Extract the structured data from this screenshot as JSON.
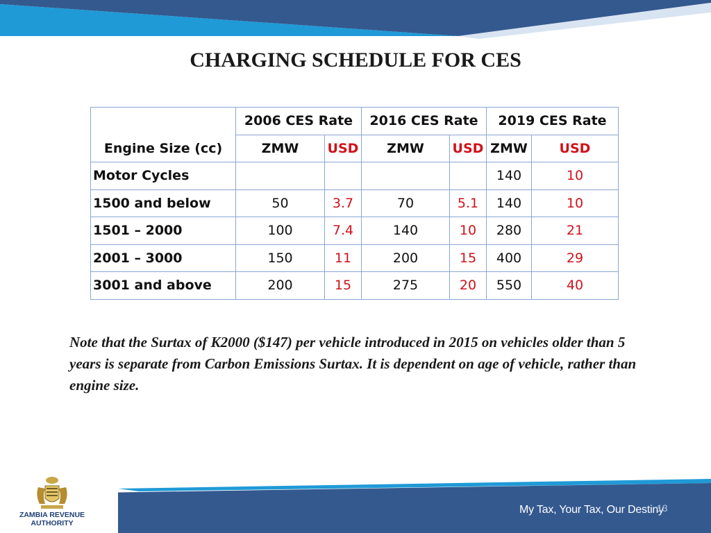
{
  "title": "CHARGING SCHEDULE FOR CES",
  "table": {
    "engine_header": "Engine Size (cc)",
    "groups": [
      "2006 CES Rate",
      "2016 CES Rate",
      "2019 CES Rate"
    ],
    "currencies": [
      "ZMW",
      "USD",
      "ZMW",
      "USD",
      "ZMW",
      "USD"
    ],
    "rows": [
      {
        "label": "Motor Cycles",
        "v": [
          "",
          "",
          "",
          "",
          "140",
          "10"
        ]
      },
      {
        "label": "1500 and below",
        "v": [
          "50",
          "3.7",
          "70",
          "5.1",
          "140",
          "10"
        ]
      },
      {
        "label": "1501 – 2000",
        "v": [
          "100",
          "7.4",
          "140",
          "10",
          "280",
          "21"
        ]
      },
      {
        "label": "2001 – 3000",
        "v": [
          "150",
          "11",
          "200",
          "15",
          "400",
          "29"
        ]
      },
      {
        "label": "3001 and above",
        "v": [
          "200",
          "15",
          "275",
          "20",
          "550",
          "40"
        ]
      }
    ]
  },
  "note": "Note that the Surtax of K2000  ($147)  per vehicle introduced in 2015 on vehicles older than 5 years is separate from Carbon Emissions Surtax. It is dependent on age of vehicle, rather than engine size.",
  "footer": {
    "logo_line1": "ZAMBIA REVENUE",
    "logo_line2": "AUTHORITY",
    "tagline": "My  Tax, Your Tax, Our Destiny",
    "page_number": "13"
  },
  "colors": {
    "navy": "#34598f",
    "sky": "#1f9ad6",
    "usd_red": "#d0121b",
    "grid": "#8aa6d4"
  }
}
